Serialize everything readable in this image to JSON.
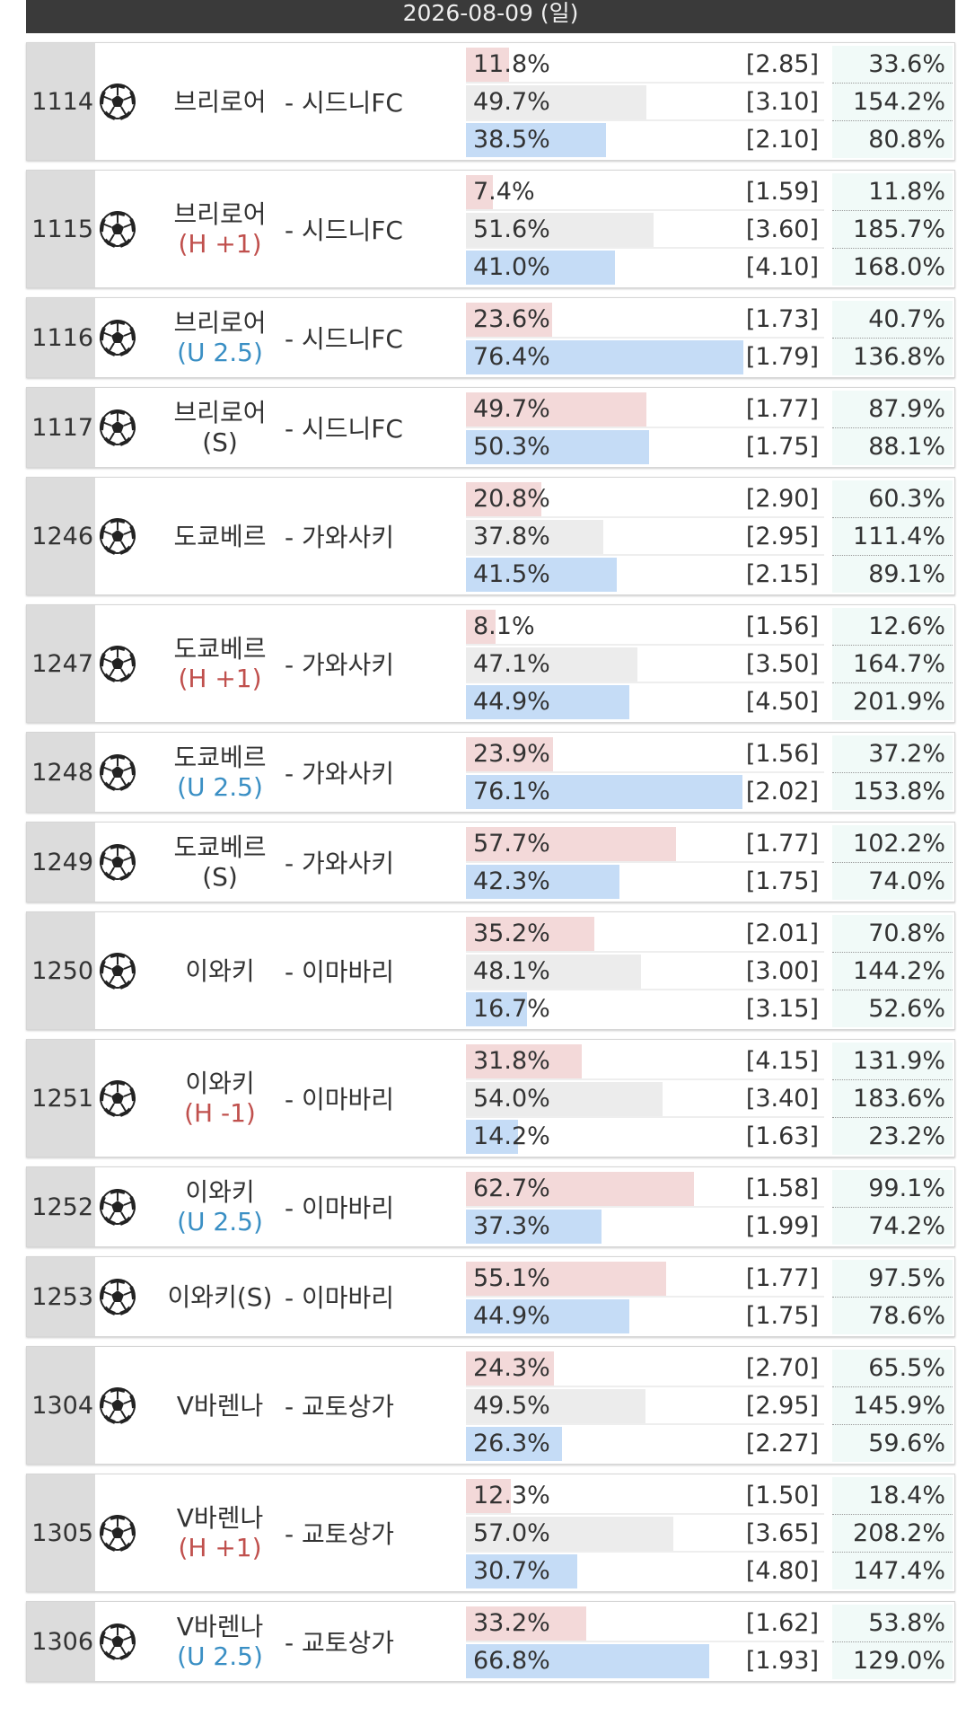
{
  "header": {
    "date": "2026-08-09 (일)"
  },
  "bar_colors_three": [
    "#f3d9d9",
    "#ececec",
    "#c5dcf6"
  ],
  "bar_colors_two": [
    "#f3d9d9",
    "#c5dcf6"
  ],
  "rows": [
    {
      "id": "1114",
      "team": "브리로어",
      "away": "- 시드니FC",
      "options": [
        {
          "pct": {
            "value": 11.8,
            "label": "11.8%"
          },
          "odds": "[2.85]",
          "ret": "33.6%"
        },
        {
          "pct": {
            "value": 49.7,
            "label": "49.7%"
          },
          "odds": "[3.10]",
          "ret": "154.2%"
        },
        {
          "pct": {
            "value": 38.5,
            "label": "38.5%"
          },
          "odds": "[2.10]",
          "ret": "80.8%"
        }
      ]
    },
    {
      "id": "1115",
      "team": "브리로어",
      "handicap": "(H +1)",
      "handicap_color": "#c0504d",
      "away": "- 시드니FC",
      "options": [
        {
          "pct": {
            "value": 7.4,
            "label": "7.4%"
          },
          "odds": "[1.59]",
          "ret": "11.8%"
        },
        {
          "pct": {
            "value": 51.6,
            "label": "51.6%"
          },
          "odds": "[3.60]",
          "ret": "185.7%"
        },
        {
          "pct": {
            "value": 41.0,
            "label": "41.0%"
          },
          "odds": "[4.10]",
          "ret": "168.0%"
        }
      ]
    },
    {
      "id": "1116",
      "team": "브리로어",
      "handicap": "(U 2.5)",
      "handicap_color": "#3a8fc4",
      "away": "- 시드니FC",
      "options": [
        {
          "pct": {
            "value": 23.6,
            "label": "23.6%"
          },
          "odds": "[1.73]",
          "ret": "40.7%"
        },
        {
          "pct": {
            "value": 76.4,
            "label": "76.4%"
          },
          "odds": "[1.79]",
          "ret": "136.8%"
        }
      ]
    },
    {
      "id": "1117",
      "team": "브리로어",
      "handicap": "(S)",
      "handicap_color": "#333333",
      "away": "- 시드니FC",
      "options": [
        {
          "pct": {
            "value": 49.7,
            "label": "49.7%"
          },
          "odds": "[1.77]",
          "ret": "87.9%"
        },
        {
          "pct": {
            "value": 50.3,
            "label": "50.3%"
          },
          "odds": "[1.75]",
          "ret": "88.1%"
        }
      ]
    },
    {
      "id": "1246",
      "team": "도쿄베르",
      "away": "- 가와사키",
      "options": [
        {
          "pct": {
            "value": 20.8,
            "label": "20.8%"
          },
          "odds": "[2.90]",
          "ret": "60.3%"
        },
        {
          "pct": {
            "value": 37.8,
            "label": "37.8%"
          },
          "odds": "[2.95]",
          "ret": "111.4%"
        },
        {
          "pct": {
            "value": 41.5,
            "label": "41.5%"
          },
          "odds": "[2.15]",
          "ret": "89.1%"
        }
      ]
    },
    {
      "id": "1247",
      "team": "도쿄베르",
      "handicap": "(H +1)",
      "handicap_color": "#c0504d",
      "away": "- 가와사키",
      "options": [
        {
          "pct": {
            "value": 8.1,
            "label": "8.1%"
          },
          "odds": "[1.56]",
          "ret": "12.6%"
        },
        {
          "pct": {
            "value": 47.1,
            "label": "47.1%"
          },
          "odds": "[3.50]",
          "ret": "164.7%"
        },
        {
          "pct": {
            "value": 44.9,
            "label": "44.9%"
          },
          "odds": "[4.50]",
          "ret": "201.9%"
        }
      ]
    },
    {
      "id": "1248",
      "team": "도쿄베르",
      "handicap": "(U 2.5)",
      "handicap_color": "#3a8fc4",
      "away": "- 가와사키",
      "options": [
        {
          "pct": {
            "value": 23.9,
            "label": "23.9%"
          },
          "odds": "[1.56]",
          "ret": "37.2%"
        },
        {
          "pct": {
            "value": 76.1,
            "label": "76.1%"
          },
          "odds": "[2.02]",
          "ret": "153.8%"
        }
      ]
    },
    {
      "id": "1249",
      "team": "도쿄베르",
      "handicap": "(S)",
      "handicap_color": "#333333",
      "away": "- 가와사키",
      "options": [
        {
          "pct": {
            "value": 57.7,
            "label": "57.7%"
          },
          "odds": "[1.77]",
          "ret": "102.2%"
        },
        {
          "pct": {
            "value": 42.3,
            "label": "42.3%"
          },
          "odds": "[1.75]",
          "ret": "74.0%"
        }
      ]
    },
    {
      "id": "1250",
      "team": "이와키",
      "away": "- 이마바리",
      "options": [
        {
          "pct": {
            "value": 35.2,
            "label": "35.2%"
          },
          "odds": "[2.01]",
          "ret": "70.8%"
        },
        {
          "pct": {
            "value": 48.1,
            "label": "48.1%"
          },
          "odds": "[3.00]",
          "ret": "144.2%"
        },
        {
          "pct": {
            "value": 16.7,
            "label": "16.7%"
          },
          "odds": "[3.15]",
          "ret": "52.6%"
        }
      ]
    },
    {
      "id": "1251",
      "team": "이와키",
      "handicap": "(H -1)",
      "handicap_color": "#c0504d",
      "away": "- 이마바리",
      "options": [
        {
          "pct": {
            "value": 31.8,
            "label": "31.8%"
          },
          "odds": "[4.15]",
          "ret": "131.9%"
        },
        {
          "pct": {
            "value": 54.0,
            "label": "54.0%"
          },
          "odds": "[3.40]",
          "ret": "183.6%"
        },
        {
          "pct": {
            "value": 14.2,
            "label": "14.2%"
          },
          "odds": "[1.63]",
          "ret": "23.2%"
        }
      ]
    },
    {
      "id": "1252",
      "team": "이와키",
      "handicap": "(U 2.5)",
      "handicap_color": "#3a8fc4",
      "away": "- 이마바리",
      "options": [
        {
          "pct": {
            "value": 62.7,
            "label": "62.7%"
          },
          "odds": "[1.58]",
          "ret": "99.1%"
        },
        {
          "pct": {
            "value": 37.3,
            "label": "37.3%"
          },
          "odds": "[1.99]",
          "ret": "74.2%"
        }
      ]
    },
    {
      "id": "1253",
      "team": "이와키(S)",
      "away": "- 이마바리",
      "options": [
        {
          "pct": {
            "value": 55.1,
            "label": "55.1%"
          },
          "odds": "[1.77]",
          "ret": "97.5%"
        },
        {
          "pct": {
            "value": 44.9,
            "label": "44.9%"
          },
          "odds": "[1.75]",
          "ret": "78.6%"
        }
      ]
    },
    {
      "id": "1304",
      "team": "V바렌나",
      "away": "- 교토상가",
      "options": [
        {
          "pct": {
            "value": 24.3,
            "label": "24.3%"
          },
          "odds": "[2.70]",
          "ret": "65.5%"
        },
        {
          "pct": {
            "value": 49.5,
            "label": "49.5%"
          },
          "odds": "[2.95]",
          "ret": "145.9%"
        },
        {
          "pct": {
            "value": 26.3,
            "label": "26.3%"
          },
          "odds": "[2.27]",
          "ret": "59.6%"
        }
      ]
    },
    {
      "id": "1305",
      "team": "V바렌나",
      "handicap": "(H +1)",
      "handicap_color": "#c0504d",
      "away": "- 교토상가",
      "options": [
        {
          "pct": {
            "value": 12.3,
            "label": "12.3%"
          },
          "odds": "[1.50]",
          "ret": "18.4%"
        },
        {
          "pct": {
            "value": 57.0,
            "label": "57.0%"
          },
          "odds": "[3.65]",
          "ret": "208.2%"
        },
        {
          "pct": {
            "value": 30.7,
            "label": "30.7%"
          },
          "odds": "[4.80]",
          "ret": "147.4%"
        }
      ]
    },
    {
      "id": "1306",
      "team": "V바렌나",
      "handicap": "(U 2.5)",
      "handicap_color": "#3a8fc4",
      "away": "- 교토상가",
      "options": [
        {
          "pct": {
            "value": 33.2,
            "label": "33.2%"
          },
          "odds": "[1.62]",
          "ret": "53.8%"
        },
        {
          "pct": {
            "value": 66.8,
            "label": "66.8%"
          },
          "odds": "[1.93]",
          "ret": "129.0%"
        }
      ]
    }
  ]
}
